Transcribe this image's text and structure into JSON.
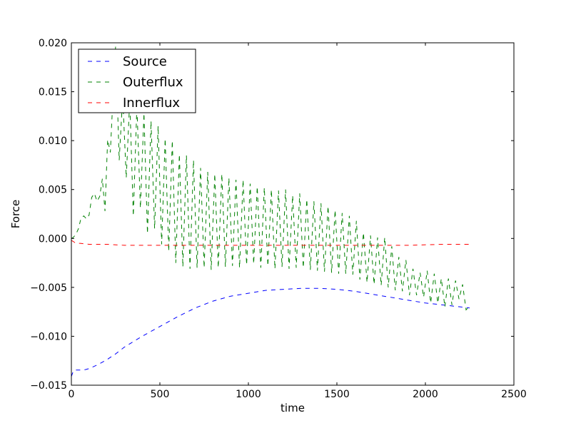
{
  "chart_data": {
    "type": "line",
    "title": "",
    "xlabel": "time",
    "ylabel": "Force",
    "xlim": [
      0,
      2500
    ],
    "ylim": [
      -0.015,
      0.02
    ],
    "xticks": [
      0,
      500,
      1000,
      1500,
      2000,
      2500
    ],
    "xtick_labels": [
      "0",
      "500",
      "1000",
      "1500",
      "2000",
      "2500"
    ],
    "yticks": [
      -0.015,
      -0.01,
      -0.005,
      0.0,
      0.005,
      0.01,
      0.015,
      0.02
    ],
    "ytick_labels": [
      "−0.015",
      "−0.010",
      "−0.005",
      "0.000",
      "0.005",
      "0.010",
      "0.015",
      "0.020"
    ],
    "grid": false,
    "legend_position": "top-left",
    "line_style": "dashed",
    "series": [
      {
        "name": "Source",
        "color": "#0000ff",
        "x": [
          0,
          10,
          20,
          40,
          60,
          80,
          100,
          150,
          200,
          250,
          300,
          400,
          500,
          600,
          700,
          800,
          900,
          1000,
          1100,
          1200,
          1300,
          1400,
          1500,
          1600,
          1700,
          1800,
          1900,
          2000,
          2100,
          2200,
          2250
        ],
        "y": [
          -0.0141,
          -0.0136,
          -0.01345,
          -0.01345,
          -0.01345,
          -0.0134,
          -0.0133,
          -0.0129,
          -0.0124,
          -0.0118,
          -0.0111,
          -0.01,
          -0.009,
          -0.008,
          -0.0071,
          -0.0064,
          -0.0059,
          -0.0056,
          -0.0053,
          -0.0052,
          -0.0051,
          -0.0051,
          -0.0052,
          -0.0054,
          -0.0057,
          -0.006,
          -0.0063,
          -0.0066,
          -0.0068,
          -0.007,
          -0.0071
        ]
      },
      {
        "name": "Outerflux",
        "color": "#008000",
        "x": [
          0,
          10,
          25,
          40,
          55,
          70,
          85,
          100,
          115,
          130,
          145,
          160,
          175,
          190,
          205,
          220,
          235,
          250,
          270,
          290,
          310,
          330,
          350,
          370,
          390,
          410,
          430,
          450,
          470,
          490,
          510,
          530,
          550,
          570,
          590,
          610,
          630,
          650,
          670,
          690,
          710,
          730,
          750,
          770,
          790,
          810,
          830,
          850,
          870,
          890,
          910,
          930,
          950,
          970,
          990,
          1010,
          1030,
          1050,
          1070,
          1090,
          1110,
          1130,
          1150,
          1170,
          1190,
          1210,
          1230,
          1250,
          1270,
          1290,
          1310,
          1330,
          1350,
          1370,
          1390,
          1410,
          1430,
          1450,
          1470,
          1490,
          1510,
          1530,
          1550,
          1570,
          1590,
          1610,
          1630,
          1650,
          1670,
          1690,
          1710,
          1730,
          1750,
          1770,
          1790,
          1810,
          1830,
          1850,
          1870,
          1890,
          1910,
          1930,
          1950,
          1970,
          1990,
          2010,
          2030,
          2050,
          2070,
          2090,
          2110,
          2130,
          2150,
          2170,
          2190,
          2210,
          2230,
          2245
        ],
        "y": [
          0.0,
          0.0001,
          0.0004,
          0.001,
          0.0021,
          0.0023,
          0.002,
          0.0024,
          0.0042,
          0.0046,
          0.0038,
          0.0043,
          0.0061,
          0.0028,
          0.0101,
          0.0088,
          0.0145,
          0.0197,
          0.008,
          0.0145,
          0.0062,
          0.0142,
          0.0023,
          0.0136,
          0.0031,
          0.0128,
          0.0005,
          0.012,
          0.001,
          0.0115,
          -0.0006,
          0.0102,
          -0.0013,
          0.01,
          -0.0025,
          0.0086,
          -0.0029,
          0.0085,
          -0.0031,
          0.008,
          -0.003,
          0.0072,
          -0.003,
          0.0068,
          -0.0032,
          0.0066,
          -0.003,
          0.0066,
          -0.0029,
          0.0062,
          -0.0028,
          0.006,
          -0.003,
          0.006,
          -0.0027,
          0.0056,
          -0.0026,
          0.0053,
          -0.003,
          0.0052,
          -0.0028,
          0.005,
          -0.0031,
          0.0049,
          -0.0029,
          0.005,
          -0.0031,
          0.0044,
          -0.003,
          0.0046,
          -0.003,
          0.004,
          -0.0032,
          0.0038,
          -0.0033,
          0.0036,
          -0.0034,
          0.0033,
          -0.0035,
          0.0029,
          -0.0036,
          0.0026,
          -0.0036,
          0.0023,
          -0.0037,
          0.0018,
          -0.0042,
          0.0006,
          -0.0045,
          0.0003,
          -0.0047,
          0.0001,
          -0.0048,
          0.0001,
          -0.005,
          -0.0008,
          -0.0053,
          -0.0019,
          -0.0054,
          -0.0022,
          -0.0058,
          -0.0031,
          -0.0058,
          -0.0035,
          -0.006,
          -0.0033,
          -0.0066,
          -0.0036,
          -0.0066,
          -0.0041,
          -0.007,
          -0.0041,
          -0.0068,
          -0.0043,
          -0.0062,
          -0.0047,
          -0.0073,
          -0.007
        ]
      },
      {
        "name": "Innerflux",
        "color": "#ff0000",
        "x": [
          0,
          10,
          25,
          50,
          100,
          200,
          300,
          400,
          500,
          700,
          900,
          1100,
          1300,
          1500,
          1700,
          1900,
          2100,
          2250
        ],
        "y": [
          -0.0002,
          -0.0003,
          -0.0005,
          -0.0005,
          -0.0006,
          -0.0006,
          -0.0007,
          -0.0007,
          -0.0007,
          -0.0007,
          -0.0007,
          -0.0007,
          -0.0007,
          -0.0007,
          -0.0007,
          -0.0007,
          -0.0006,
          -0.0006
        ]
      }
    ]
  }
}
